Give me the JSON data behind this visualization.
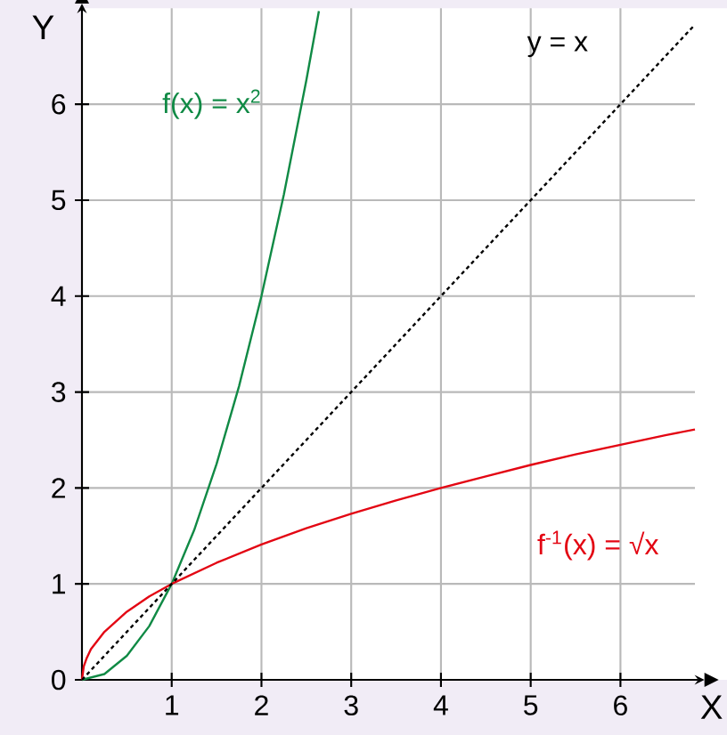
{
  "chart_data": {
    "type": "line",
    "xlabel": "X",
    "ylabel": "Y",
    "xlim": [
      0,
      6.83
    ],
    "ylim": [
      0,
      7
    ],
    "xticks": [
      1,
      2,
      3,
      4,
      5,
      6
    ],
    "yticks": [
      0,
      1,
      2,
      3,
      4,
      5,
      6
    ],
    "grid": true,
    "series": [
      {
        "name": "f(x) = x$^{2}$",
        "color": "#108a45",
        "line_style": "solid",
        "x": [
          0,
          0.25,
          0.5,
          0.75,
          1,
          1.25,
          1.5,
          1.75,
          2,
          2.25,
          2.5,
          2.64
        ],
        "values": [
          0,
          0.06,
          0.25,
          0.56,
          1,
          1.56,
          2.25,
          3.06,
          4,
          5.06,
          6.25,
          6.97
        ]
      },
      {
        "name": "f$^{-1}$(x) = √x",
        "color": "#e30613",
        "line_style": "solid",
        "x": [
          0,
          0.02,
          0.05,
          0.1,
          0.25,
          0.5,
          0.75,
          1,
          1.5,
          2,
          2.5,
          3,
          3.5,
          4,
          4.5,
          5,
          5.5,
          6,
          6.5,
          6.83
        ],
        "values": [
          0,
          0.14,
          0.22,
          0.32,
          0.5,
          0.71,
          0.87,
          1,
          1.22,
          1.41,
          1.58,
          1.73,
          1.87,
          2,
          2.12,
          2.24,
          2.35,
          2.45,
          2.55,
          2.61
        ]
      },
      {
        "name": "y = x",
        "color": "#000000",
        "line_style": "dotted",
        "x": [
          0,
          6.83
        ],
        "values": [
          0,
          6.83
        ]
      }
    ]
  }
}
